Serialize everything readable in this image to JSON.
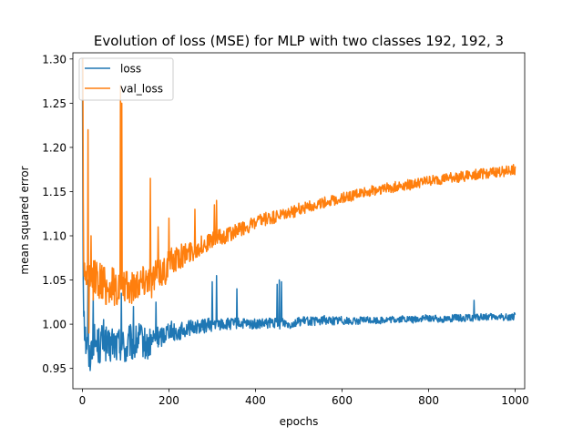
{
  "chart_data": {
    "type": "line",
    "title": "Evolution of loss (MSE) for MLP with two classes 192, 192, 3",
    "xlabel": "epochs",
    "ylabel": "mean squared error",
    "xlim": [
      -22,
      1022
    ],
    "ylim": [
      0.927,
      1.307
    ],
    "xticks": [
      0,
      200,
      400,
      600,
      800,
      1000
    ],
    "yticks": [
      0.95,
      1.0,
      1.05,
      1.1,
      1.15,
      1.2,
      1.25,
      1.3
    ],
    "ytick_labels": [
      "0.95",
      "1.00",
      "1.05",
      "1.10",
      "1.15",
      "1.20",
      "1.25",
      "1.30"
    ],
    "grid": false,
    "legend_position": "top-left",
    "series": [
      {
        "name": "loss",
        "color": "#1f77b4",
        "x": [
          0,
          1,
          2,
          3,
          5,
          8,
          12,
          16,
          20,
          25,
          30,
          40,
          50,
          60,
          70,
          80,
          90,
          100,
          110,
          120,
          130,
          140,
          150,
          160,
          170,
          180,
          190,
          200,
          220,
          240,
          260,
          280,
          300,
          310,
          320,
          340,
          360,
          380,
          400,
          420,
          440,
          455,
          460,
          480,
          500,
          520,
          540,
          560,
          580,
          600,
          620,
          640,
          660,
          680,
          700,
          720,
          740,
          760,
          780,
          800,
          820,
          840,
          860,
          880,
          900,
          920,
          940,
          960,
          980,
          1000
        ],
        "y": [
          1.3,
          1.16,
          1.065,
          1.03,
          1.0,
          0.98,
          0.975,
          0.96,
          0.97,
          0.985,
          0.98,
          0.975,
          0.985,
          0.97,
          0.98,
          0.975,
          0.98,
          0.97,
          0.98,
          0.975,
          0.985,
          0.98,
          0.975,
          0.98,
          0.985,
          0.985,
          0.99,
          0.995,
          0.99,
          0.995,
          0.997,
          0.998,
          1.0,
          1.0,
          1.0,
          1.0,
          1.001,
          1.0,
          1.0,
          1.0,
          1.002,
          1.0,
          1.003,
          1.0,
          1.003,
          1.004,
          1.003,
          1.005,
          1.004,
          1.005,
          1.003,
          1.004,
          1.005,
          1.004,
          1.005,
          1.005,
          1.006,
          1.005,
          1.006,
          1.007,
          1.006,
          1.006,
          1.007,
          1.007,
          1.007,
          1.008,
          1.008,
          1.008,
          1.008,
          1.009
        ],
        "noise": [
          0,
          0.03,
          0.03,
          0.025,
          0.025,
          0.02,
          0.02,
          0.02,
          0.02,
          0.02,
          0.02,
          0.022,
          0.022,
          0.022,
          0.022,
          0.02,
          0.02,
          0.02,
          0.02,
          0.02,
          0.018,
          0.018,
          0.018,
          0.016,
          0.014,
          0.012,
          0.012,
          0.011,
          0.01,
          0.009,
          0.008,
          0.008,
          0.008,
          0.007,
          0.007,
          0.007,
          0.006,
          0.006,
          0.006,
          0.006,
          0.006,
          0.006,
          0.006,
          0.005,
          0.005,
          0.005,
          0.005,
          0.005,
          0.005,
          0.005,
          0.004,
          0.004,
          0.004,
          0.004,
          0.004,
          0.004,
          0.004,
          0.004,
          0.004,
          0.004,
          0.004,
          0.004,
          0.004,
          0.004,
          0.004,
          0.004,
          0.004,
          0.004,
          0.004,
          0.004
        ],
        "spikes": [
          [
            13,
            1.05
          ],
          [
            25,
            1.03
          ],
          [
            90,
            1.035
          ],
          [
            118,
            1.02
          ],
          [
            170,
            1.025
          ],
          [
            300,
            1.048
          ],
          [
            310,
            1.055
          ],
          [
            357,
            1.04
          ],
          [
            450,
            1.045
          ],
          [
            455,
            1.05
          ],
          [
            460,
            1.048
          ],
          [
            905,
            1.027
          ]
        ]
      },
      {
        "name": "val_loss",
        "color": "#ff7f0e",
        "x": [
          0,
          1,
          2,
          3,
          5,
          8,
          12,
          16,
          20,
          30,
          40,
          50,
          60,
          70,
          80,
          90,
          100,
          110,
          120,
          130,
          140,
          150,
          160,
          170,
          180,
          190,
          200,
          220,
          240,
          260,
          280,
          300,
          320,
          340,
          360,
          380,
          400,
          420,
          440,
          460,
          480,
          500,
          520,
          540,
          560,
          580,
          600,
          620,
          640,
          660,
          680,
          700,
          720,
          740,
          760,
          780,
          800,
          820,
          840,
          860,
          880,
          900,
          920,
          940,
          960,
          980,
          1000
        ],
        "y": [
          1.3,
          1.22,
          1.13,
          1.08,
          1.06,
          1.055,
          1.05,
          1.04,
          1.045,
          1.055,
          1.05,
          1.045,
          1.04,
          1.045,
          1.04,
          1.045,
          1.04,
          1.04,
          1.045,
          1.05,
          1.05,
          1.055,
          1.05,
          1.055,
          1.06,
          1.06,
          1.07,
          1.075,
          1.08,
          1.085,
          1.09,
          1.095,
          1.098,
          1.102,
          1.106,
          1.11,
          1.114,
          1.118,
          1.12,
          1.123,
          1.126,
          1.13,
          1.133,
          1.135,
          1.138,
          1.14,
          1.143,
          1.145,
          1.148,
          1.15,
          1.152,
          1.154,
          1.155,
          1.157,
          1.158,
          1.16,
          1.162,
          1.163,
          1.165,
          1.166,
          1.167,
          1.169,
          1.17,
          1.171,
          1.172,
          1.173,
          1.175
        ],
        "noise": [
          0,
          0.03,
          0.03,
          0.025,
          0.02,
          0.02,
          0.025,
          0.025,
          0.025,
          0.022,
          0.022,
          0.022,
          0.022,
          0.022,
          0.022,
          0.02,
          0.02,
          0.02,
          0.02,
          0.02,
          0.02,
          0.02,
          0.02,
          0.02,
          0.018,
          0.018,
          0.016,
          0.014,
          0.013,
          0.012,
          0.011,
          0.01,
          0.01,
          0.009,
          0.009,
          0.008,
          0.008,
          0.008,
          0.008,
          0.007,
          0.007,
          0.007,
          0.007,
          0.006,
          0.006,
          0.006,
          0.006,
          0.006,
          0.006,
          0.006,
          0.006,
          0.006,
          0.006,
          0.006,
          0.006,
          0.006,
          0.006,
          0.006,
          0.006,
          0.006,
          0.006,
          0.006,
          0.006,
          0.006,
          0.006,
          0.006,
          0.006
        ],
        "spikes": [
          [
            1,
            1.3
          ],
          [
            13,
            1.22
          ],
          [
            15,
            0.99
          ],
          [
            20,
            1.1
          ],
          [
            88,
            1.27
          ],
          [
            91,
            1.25
          ],
          [
            92,
            1.04
          ],
          [
            157,
            1.165
          ],
          [
            175,
            1.11
          ],
          [
            200,
            1.12
          ],
          [
            260,
            1.13
          ],
          [
            305,
            1.135
          ],
          [
            310,
            1.14
          ]
        ]
      }
    ]
  }
}
